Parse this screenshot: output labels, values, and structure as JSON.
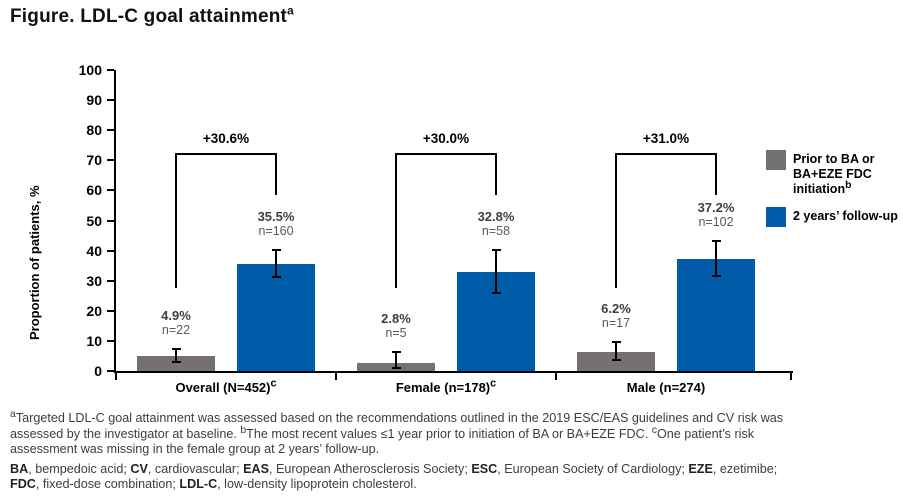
{
  "figure": {
    "title": {
      "text": "Figure. LDL-C goal attainment",
      "sup": "a"
    }
  },
  "chart_data": {
    "type": "bar",
    "title": "Figure. LDL-C goal attainment",
    "xlabel": "",
    "ylabel": "Proportion of patients, %",
    "ylim": [
      0,
      100
    ],
    "y_ticks": [
      0,
      10,
      20,
      30,
      40,
      50,
      60,
      70,
      80,
      90,
      100
    ],
    "grid": false,
    "legend_position": "right",
    "categories": [
      {
        "label": "Overall (N=452)",
        "sup": "c"
      },
      {
        "label": "Female (n=178)",
        "sup": "c"
      },
      {
        "label": "Male (n=274)",
        "sup": ""
      }
    ],
    "series": [
      {
        "name": "Prior to BA or BA+EZE FDC initiation",
        "name_sup": "b",
        "color": "#767171",
        "values": [
          4.9,
          2.8,
          6.2
        ],
        "value_labels": [
          "4.9%",
          "2.8%",
          "6.2%"
        ],
        "n_labels": [
          "n=22",
          "n=5",
          "n=17"
        ],
        "err_lo": [
          3.1,
          0.9,
          3.7
        ],
        "err_hi": [
          7.3,
          6.4,
          9.8
        ]
      },
      {
        "name": "2 years’ follow-up",
        "name_sup": "",
        "color": "#005CA8",
        "values": [
          35.5,
          32.8,
          37.2
        ],
        "value_labels": [
          "35.5%",
          "32.8%",
          "37.2%"
        ],
        "n_labels": [
          "n=160",
          "n=58",
          "n=102"
        ],
        "err_lo": [
          31.1,
          25.9,
          31.5
        ],
        "err_hi": [
          40.1,
          40.2,
          43.2
        ]
      }
    ],
    "delta_labels": [
      "+30.6%",
      "+30.0%",
      "+31.0%"
    ],
    "bracket_pct": {
      "top": 72.5,
      "first_leg_bottom": 27.5,
      "second_leg_bottom": 58.5
    }
  },
  "footnotes": {
    "notes": [
      {
        "sup": "a"
      },
      {
        "t": "Targeted LDL-C goal attainment was assessed based on the recommendations outlined in the 2019 ESC/EAS guidelines and CV risk was"
      },
      {
        "br": true
      },
      {
        "t": "assessed by the investigator at baseline. "
      },
      {
        "sup": "b"
      },
      {
        "t": "The most recent values ≤1 year prior to initiation of BA or BA+EZE FDC. "
      },
      {
        "sup": "c"
      },
      {
        "t": "One patient’s risk"
      },
      {
        "br": true
      },
      {
        "t": "assessment was missing in the female group at 2 years’ follow-up."
      }
    ],
    "abbreviations": [
      {
        "b": "BA"
      },
      {
        "t": ", bempedoic acid; "
      },
      {
        "b": "CV"
      },
      {
        "t": ", cardiovascular; "
      },
      {
        "b": "EAS"
      },
      {
        "t": ", European Atherosclerosis Society; "
      },
      {
        "b": "ESC"
      },
      {
        "t": ", European Society of Cardiology; "
      },
      {
        "b": "EZE"
      },
      {
        "t": ", ezetimibe;"
      },
      {
        "br": true
      },
      {
        "b": "FDC"
      },
      {
        "t": ", fixed-dose combination; "
      },
      {
        "b": "LDL-C"
      },
      {
        "t": ", low-density lipoprotein cholesterol."
      }
    ]
  }
}
